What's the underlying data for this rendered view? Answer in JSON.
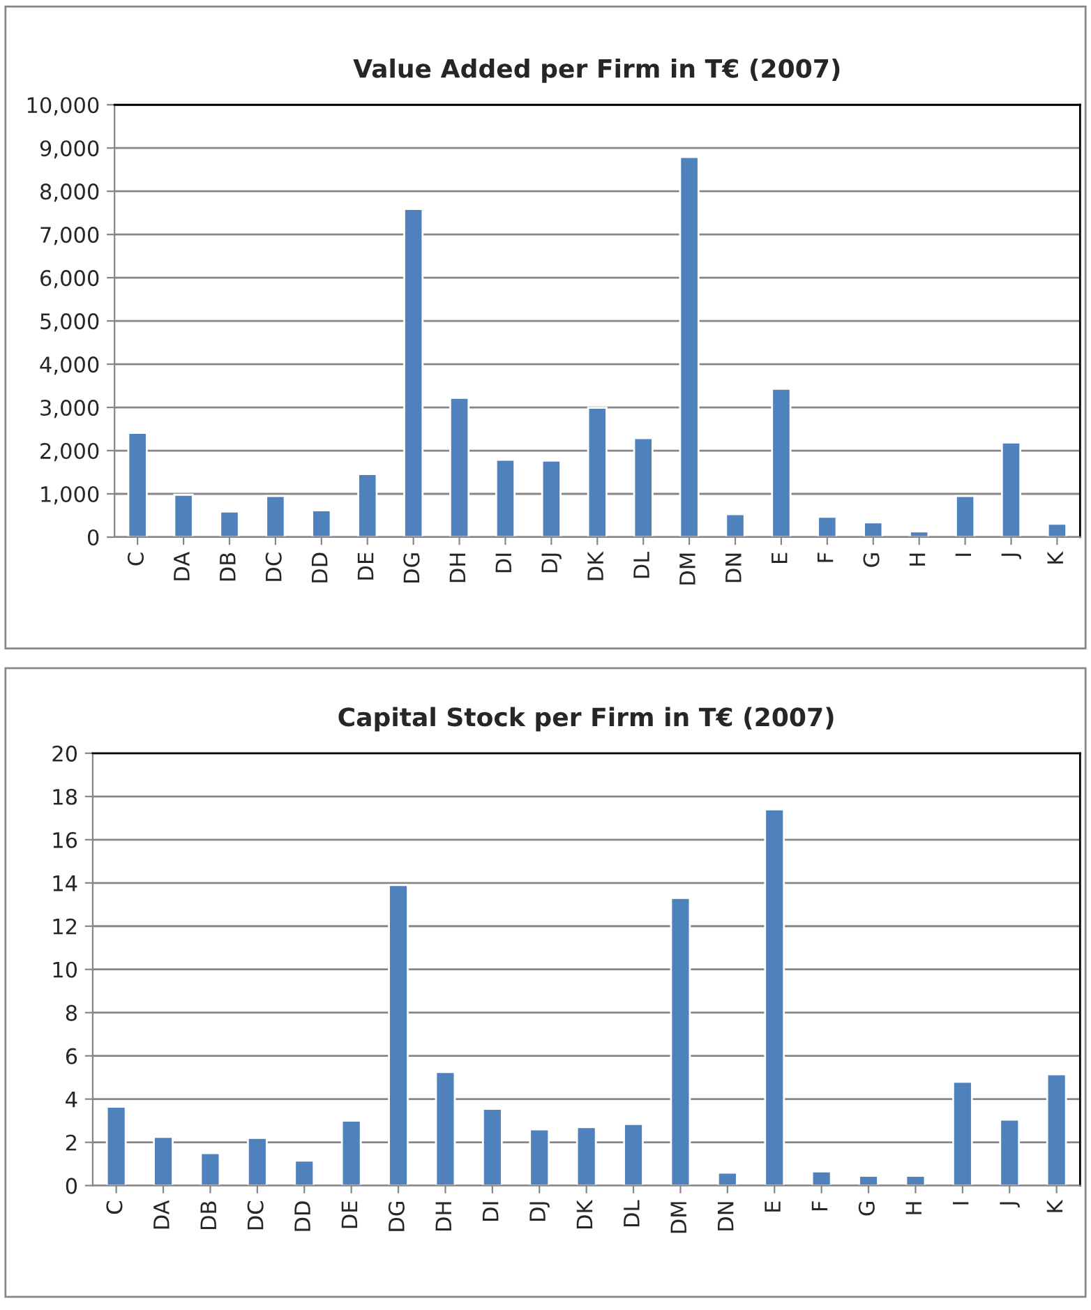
{
  "chart_data": [
    {
      "type": "bar",
      "title": "Value Added per Firm in T€ (2007)",
      "categories": [
        "C",
        "DA",
        "DB",
        "DC",
        "DD",
        "DE",
        "DG",
        "DH",
        "DI",
        "DJ",
        "DK",
        "DL",
        "DM",
        "DN",
        "E",
        "F",
        "G",
        "H",
        "I",
        "J",
        "K"
      ],
      "values": [
        2410,
        980,
        590,
        950,
        620,
        1460,
        7590,
        3220,
        1790,
        1770,
        2990,
        2290,
        8790,
        530,
        3430,
        470,
        340,
        130,
        950,
        2190,
        310
      ],
      "color": "#4f81bd",
      "ylim": [
        0,
        10000
      ],
      "yticks": [
        0,
        {
          "value": 1000,
          "label": "1,000"
        },
        {
          "value": 2000,
          "label": "2,000"
        },
        {
          "value": 3000,
          "label": "3,000"
        },
        {
          "value": 4000,
          "label": "4,000"
        },
        {
          "value": 5000,
          "label": "5,000"
        },
        {
          "value": 6000,
          "label": "6,000"
        },
        {
          "value": 7000,
          "label": "7,000"
        },
        {
          "value": 8000,
          "label": "8,000"
        },
        {
          "value": 9000,
          "label": "9,000"
        },
        {
          "value": 10000,
          "label": "10,000"
        }
      ],
      "grid": "y",
      "legend": false
    },
    {
      "type": "bar",
      "title": "Capital Stock per Firm in T€ (2007)",
      "categories": [
        "C",
        "DA",
        "DB",
        "DC",
        "DD",
        "DE",
        "DG",
        "DH",
        "DI",
        "DJ",
        "DK",
        "DL",
        "DM",
        "DN",
        "E",
        "F",
        "G",
        "H",
        "I",
        "J",
        "K"
      ],
      "values": [
        3.65,
        2.25,
        1.5,
        2.2,
        1.15,
        3.0,
        13.9,
        5.25,
        3.55,
        2.6,
        2.7,
        2.85,
        13.3,
        0.6,
        17.4,
        0.65,
        0.45,
        0.45,
        4.8,
        3.05,
        5.15
      ],
      "color": "#4f81bd",
      "ylim": [
        0,
        20
      ],
      "yticks": [
        0,
        2,
        4,
        6,
        8,
        10,
        12,
        14,
        16,
        18,
        20
      ],
      "grid": "y",
      "legend": false
    }
  ]
}
